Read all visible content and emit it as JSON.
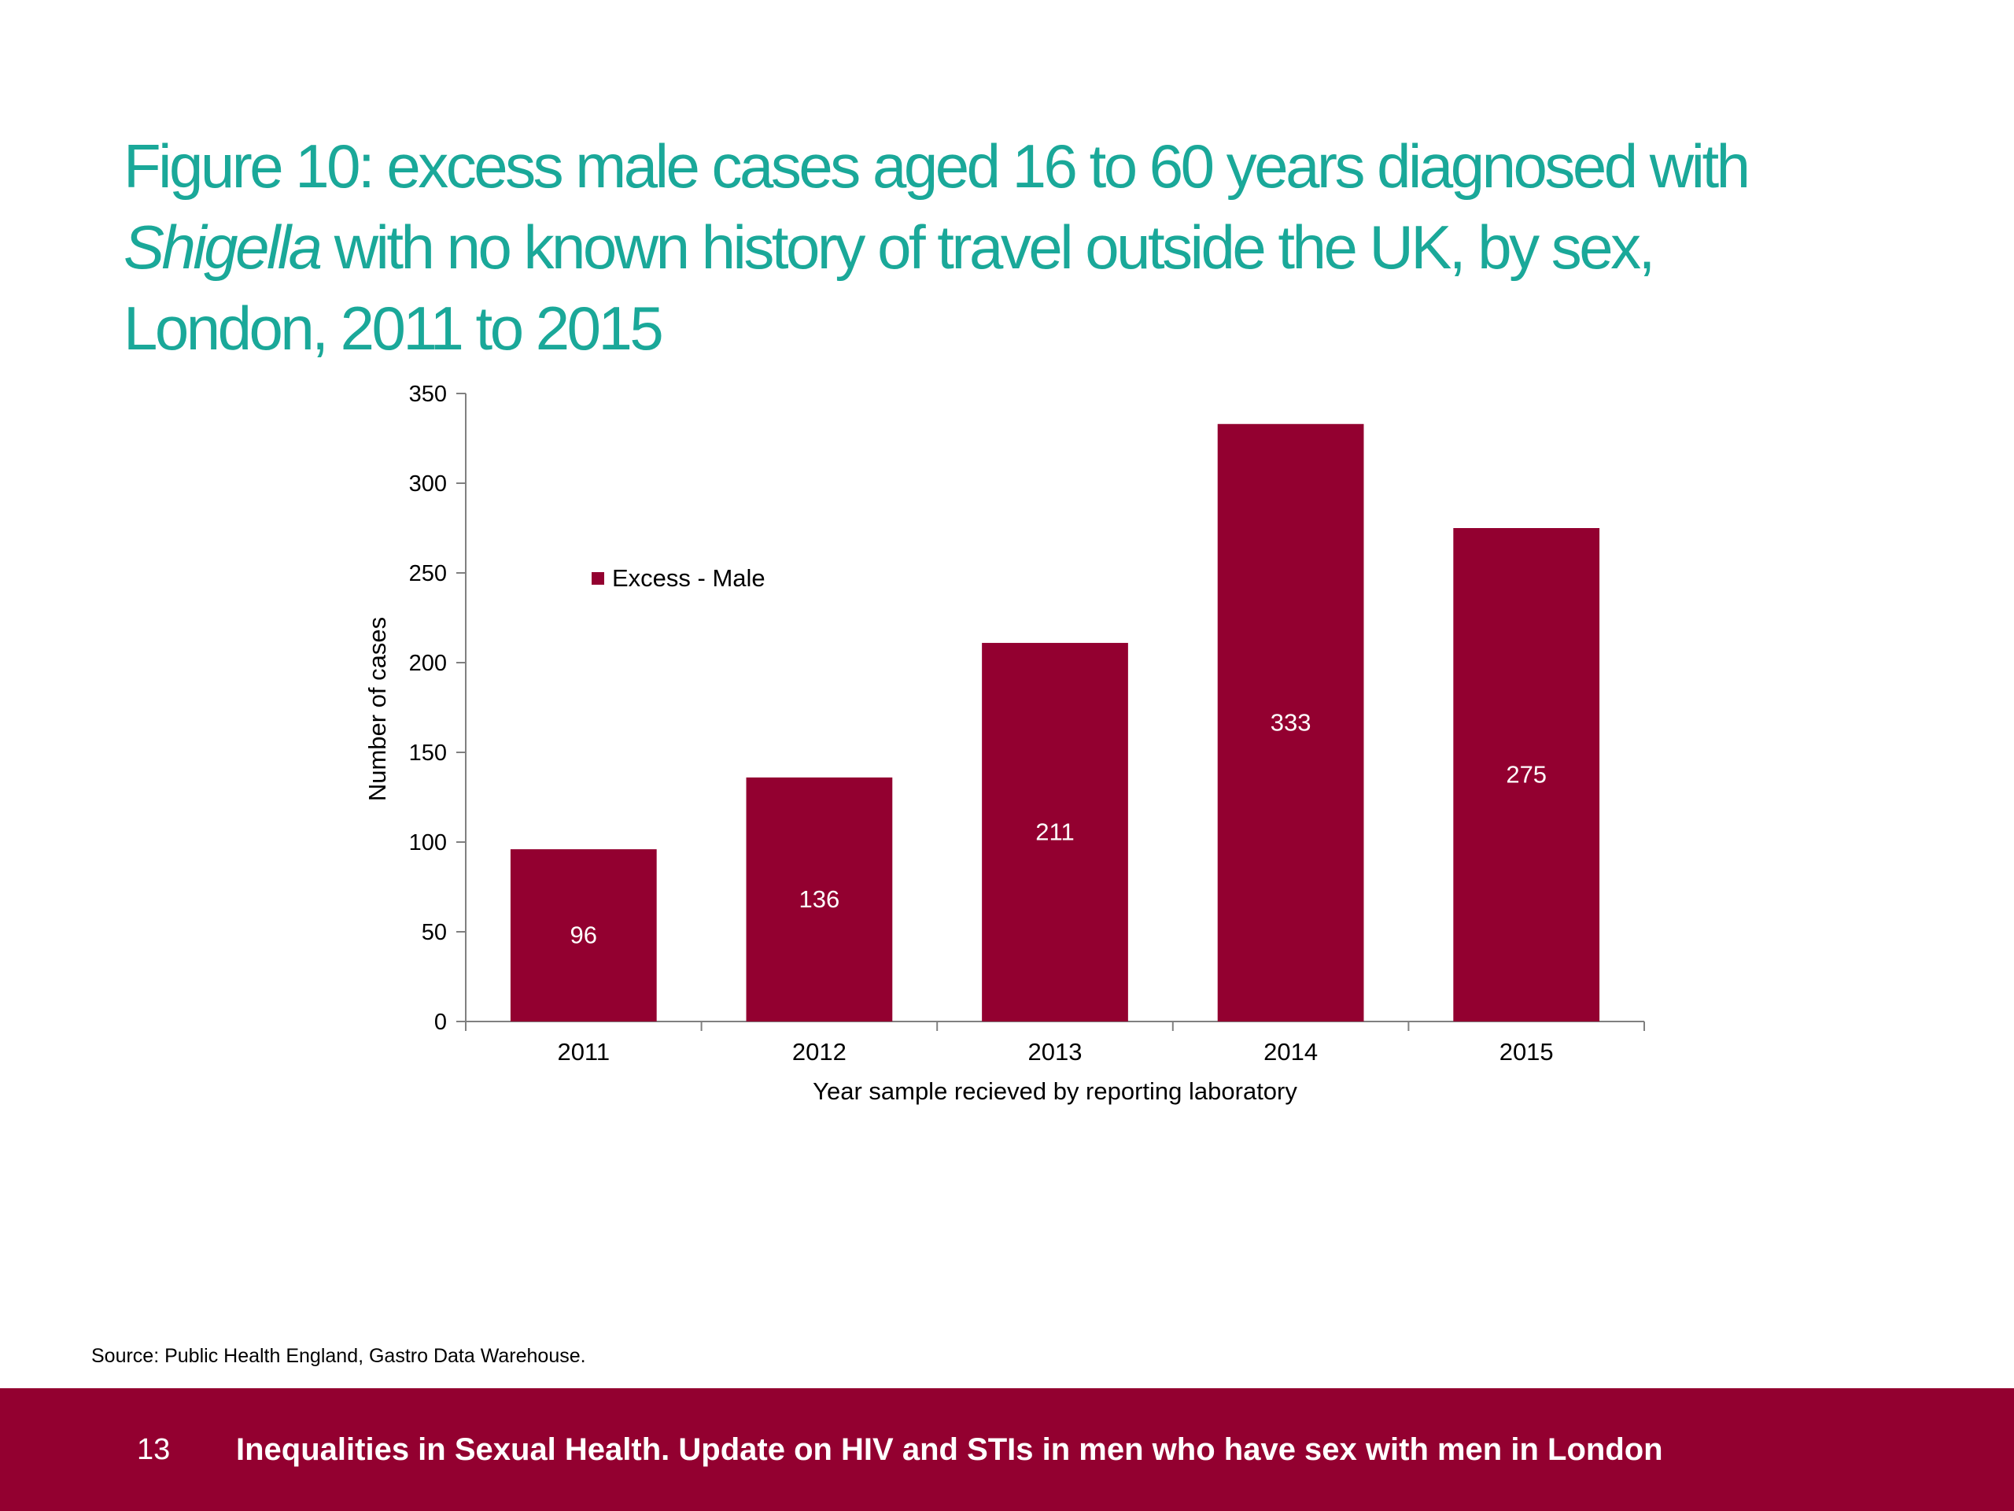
{
  "title": {
    "line1": "Figure 10: excess male cases aged 16 to 60 years diagnosed with",
    "italic": "Shigella",
    "line2_rest": " with no known history of travel outside the UK, by sex,",
    "line3": "London, 2011 to 2015"
  },
  "chart_data": {
    "type": "bar",
    "categories": [
      "2011",
      "2012",
      "2013",
      "2014",
      "2015"
    ],
    "series": [
      {
        "name": "Excess - Male",
        "values": [
          96,
          136,
          211,
          333,
          275
        ],
        "color": "#930030"
      }
    ],
    "xlabel": "Year sample recieved by reporting laboratory",
    "ylabel": "Number of cases",
    "ylim": [
      0,
      350
    ],
    "yticks": [
      0,
      50,
      100,
      150,
      200,
      250,
      300,
      350
    ],
    "grid": false,
    "data_labels": true,
    "legend_position": "top-left inside plot"
  },
  "source": "Source: Public Health England, Gastro Data Warehouse.",
  "footer": {
    "page_number": "13",
    "text": "Inequalities in Sexual Health. Update on HIV and STIs in men who have sex with men in London",
    "color": "#930030"
  },
  "colors": {
    "title": "#1aa899",
    "bar": "#930030"
  }
}
